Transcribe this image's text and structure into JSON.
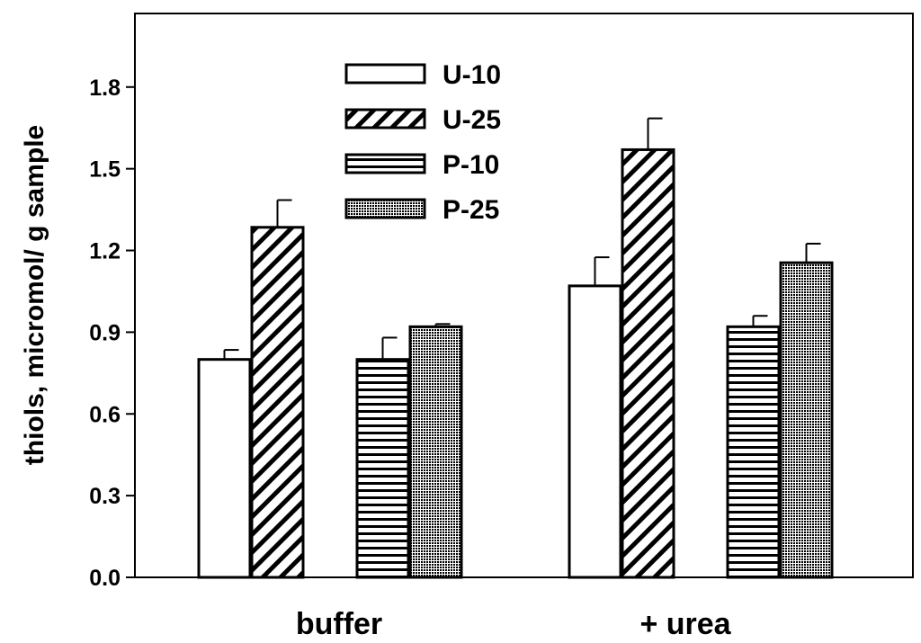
{
  "chart_data": {
    "type": "bar",
    "title": "",
    "xlabel": "",
    "ylabel": "thiols, micromol/ g sample",
    "categories": [
      "buffer",
      "+ urea"
    ],
    "ylim": [
      0,
      2.07
    ],
    "yticks": [
      "0.0",
      "0.3",
      "0.6",
      "0.9",
      "1.2",
      "1.5",
      "1.8"
    ],
    "grid": false,
    "legend_position": "top-left",
    "series": [
      {
        "name": "U-10",
        "pattern": "none",
        "values": [
          0.8,
          1.07
        ],
        "errors": [
          0.035,
          0.105
        ]
      },
      {
        "name": "U-25",
        "pattern": "diagonal",
        "values": [
          1.285,
          1.57
        ],
        "errors": [
          0.1,
          0.115
        ]
      },
      {
        "name": "P-10",
        "pattern": "horizontal",
        "values": [
          0.8,
          0.92
        ],
        "errors": [
          0.08,
          0.04
        ]
      },
      {
        "name": "P-25",
        "pattern": "dots",
        "values": [
          0.92,
          1.155
        ],
        "errors": [
          0.01,
          0.07
        ]
      }
    ]
  }
}
